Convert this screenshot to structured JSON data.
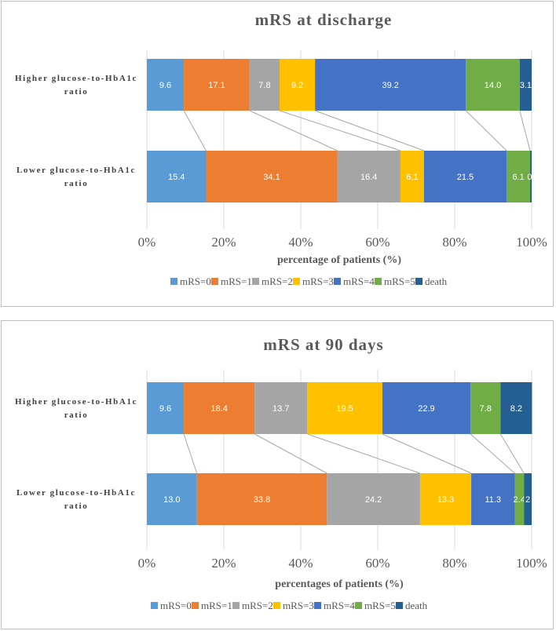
{
  "chart_data": [
    {
      "type": "bar",
      "orientation": "horizontal",
      "stacked": true,
      "title": "mRS at discharge",
      "xlabel": "percentage of patients (%)",
      "ylabel": "",
      "xlim": [
        0,
        100
      ],
      "xticks": [
        "0%",
        "20%",
        "40%",
        "60%",
        "80%",
        "100%"
      ],
      "categories": [
        [
          "Higher glucose-to-HbA1c",
          "ratio"
        ],
        [
          "Lower glucose-to-HbA1c",
          "ratio"
        ]
      ],
      "series": [
        {
          "name": "mRS=0",
          "color": "#5b9bd5",
          "values": [
            9.6,
            15.4
          ],
          "labels": [
            "9.6",
            "15.4"
          ]
        },
        {
          "name": "mRS=1",
          "color": "#ed7d31",
          "values": [
            17.1,
            34.1
          ],
          "labels": [
            "17.1",
            "34.1"
          ]
        },
        {
          "name": "mRS=2",
          "color": "#a5a5a5",
          "values": [
            7.8,
            16.4
          ],
          "labels": [
            "7.8",
            "16.4"
          ]
        },
        {
          "name": "mRS=3",
          "color": "#ffc000",
          "values": [
            9.2,
            6.1
          ],
          "labels": [
            "9.2",
            "6.1"
          ]
        },
        {
          "name": "mRS=4",
          "color": "#4472c4",
          "values": [
            39.2,
            21.5
          ],
          "labels": [
            "39.2",
            "21.5"
          ]
        },
        {
          "name": "mRS=5",
          "color": "#70ad47",
          "values": [
            14.0,
            6.1
          ],
          "labels": [
            "14.0",
            "6.1"
          ]
        },
        {
          "name": "death",
          "color": "#255e91",
          "values": [
            3.1,
            0.4
          ],
          "labels": [
            "3.1",
            "0."
          ]
        }
      ],
      "legend_position": "bottom",
      "connector_lines": true
    },
    {
      "type": "bar",
      "orientation": "horizontal",
      "stacked": true,
      "title": "mRS at 90 days",
      "xlabel": "percentages of patients (%)",
      "ylabel": "",
      "xlim": [
        0,
        100
      ],
      "xticks": [
        "0%",
        "20%",
        "40%",
        "60%",
        "80%",
        "100%"
      ],
      "categories": [
        [
          "Higher glucose-to-HbA1c",
          "ratio"
        ],
        [
          "Lower glucose-to-HbA1c",
          "ratio"
        ]
      ],
      "series": [
        {
          "name": "mRS=0",
          "color": "#5b9bd5",
          "values": [
            9.6,
            13.0
          ],
          "labels": [
            "9.6",
            "13.0"
          ]
        },
        {
          "name": "mRS=1",
          "color": "#ed7d31",
          "values": [
            18.4,
            33.8
          ],
          "labels": [
            "18.4",
            "33.8"
          ]
        },
        {
          "name": "mRS=2",
          "color": "#a5a5a5",
          "values": [
            13.7,
            24.2
          ],
          "labels": [
            "13.7",
            "24.2"
          ]
        },
        {
          "name": "mRS=3",
          "color": "#ffc000",
          "values": [
            19.5,
            13.3
          ],
          "labels": [
            "19.5",
            "13.3"
          ]
        },
        {
          "name": "mRS=4",
          "color": "#4472c4",
          "values": [
            22.9,
            11.3
          ],
          "labels": [
            "22.9",
            "11.3"
          ]
        },
        {
          "name": "mRS=5",
          "color": "#70ad47",
          "values": [
            7.8,
            2.4
          ],
          "labels": [
            "7.8",
            "2.4"
          ]
        },
        {
          "name": "death",
          "color": "#255e91",
          "values": [
            8.2,
            2.0
          ],
          "labels": [
            "8.2",
            "2"
          ]
        }
      ],
      "legend_position": "bottom",
      "connector_lines": true
    }
  ]
}
